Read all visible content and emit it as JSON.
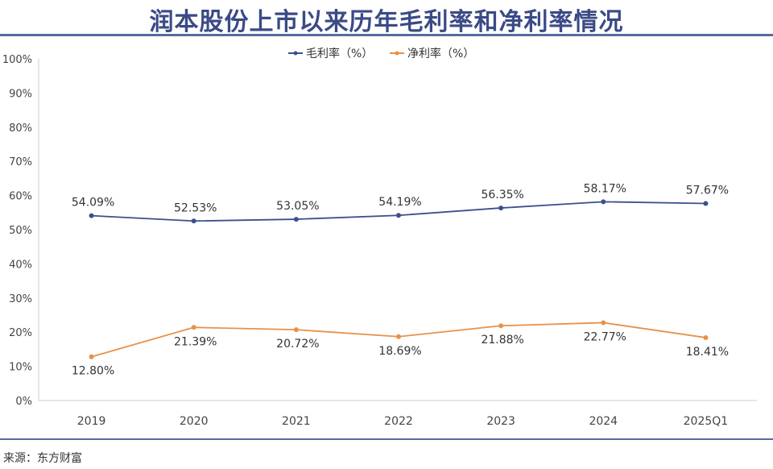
{
  "title": "润本股份上市以来历年毛利率和净利率情况",
  "source": "来源：东方财富",
  "chart_data": {
    "type": "line",
    "categories": [
      "2019",
      "2020",
      "2021",
      "2022",
      "2023",
      "2024",
      "2025Q1"
    ],
    "ylim": [
      0,
      100
    ],
    "yticks": [
      "0%",
      "10%",
      "20%",
      "30%",
      "40%",
      "50%",
      "60%",
      "70%",
      "80%",
      "90%",
      "100%"
    ],
    "grid": false,
    "legend_position": "top",
    "series": [
      {
        "name": "毛利率（%）",
        "color": "#3d4f8c",
        "values": [
          54.09,
          52.53,
          53.05,
          54.19,
          56.35,
          58.17,
          57.67
        ],
        "labels": [
          "54.09%",
          "52.53%",
          "53.05%",
          "54.19%",
          "56.35%",
          "58.17%",
          "57.67%"
        ]
      },
      {
        "name": "净利率（%）",
        "color": "#e8914a",
        "values": [
          12.8,
          21.39,
          20.72,
          18.69,
          21.88,
          22.77,
          18.41
        ],
        "labels": [
          "12.80%",
          "21.39%",
          "20.72%",
          "18.69%",
          "21.88%",
          "22.77%",
          "18.41%"
        ]
      }
    ]
  }
}
